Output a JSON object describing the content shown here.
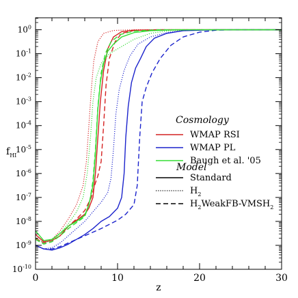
{
  "chart_data": {
    "type": "line",
    "xlabel": "z",
    "ylabel_main": "f",
    "ylabel_sub": "HI",
    "xlim": [
      0,
      30
    ],
    "ylim_log10": [
      -10,
      0.5
    ],
    "log_y": true,
    "x_ticks": [
      {
        "value": 0,
        "label": "0"
      },
      {
        "value": 10,
        "label": "10"
      },
      {
        "value": 20,
        "label": "20"
      },
      {
        "value": 30,
        "label": "30"
      }
    ],
    "y_ticks": [
      {
        "exp": 0,
        "base": "10",
        "sup": "0"
      },
      {
        "exp": -1,
        "base": "10",
        "sup": "-1"
      },
      {
        "exp": -2,
        "base": "10",
        "sup": "-2"
      },
      {
        "exp": -3,
        "base": "10",
        "sup": "-3"
      },
      {
        "exp": -4,
        "base": "10",
        "sup": "-4"
      },
      {
        "exp": -5,
        "base": "10",
        "sup": "-5"
      },
      {
        "exp": -6,
        "base": "10",
        "sup": "-6"
      },
      {
        "exp": -7,
        "base": "10",
        "sup": "-7"
      },
      {
        "exp": -8,
        "base": "10",
        "sup": "-8"
      },
      {
        "exp": -9,
        "base": "10",
        "sup": "-9"
      },
      {
        "exp": -10,
        "base": "10",
        "sup": "-10"
      }
    ],
    "legend_cosmology": {
      "title": "Cosmology",
      "items": [
        {
          "label": "WMAP RSI",
          "color": "#d42020"
        },
        {
          "label": "WMAP PL",
          "color": "#1a22cc"
        },
        {
          "label": "Baugh et al. '05",
          "color": "#33dd33"
        }
      ]
    },
    "legend_model": {
      "title": "Model",
      "items": [
        {
          "label": "Standard",
          "style": "solid"
        },
        {
          "label": "H",
          "sub": "2",
          "style": "dotted"
        },
        {
          "label": "H",
          "sub": "2",
          "label2": "WeakFB-VMSH",
          "sub2": "2",
          "style": "dashed"
        }
      ]
    },
    "series": [
      {
        "cosmology": "WMAP RSI",
        "model": "Standard",
        "color": "#d42020",
        "style": "solid",
        "points": [
          [
            0,
            -8.55
          ],
          [
            1,
            -8.85
          ],
          [
            2,
            -8.8
          ],
          [
            3,
            -8.6
          ],
          [
            4,
            -8.2
          ],
          [
            5,
            -7.95
          ],
          [
            6,
            -7.7
          ],
          [
            6.5,
            -7.45
          ],
          [
            7,
            -7.0
          ],
          [
            7.3,
            -6.0
          ],
          [
            7.6,
            -4.5
          ],
          [
            7.9,
            -3.0
          ],
          [
            8.3,
            -1.7
          ],
          [
            8.8,
            -0.8
          ],
          [
            9.5,
            -0.3
          ],
          [
            10.5,
            -0.08
          ],
          [
            12,
            -0.02
          ],
          [
            15,
            0
          ],
          [
            30,
            0
          ]
        ]
      },
      {
        "cosmology": "WMAP RSI",
        "model": "H2",
        "color": "#d42020",
        "style": "dotted",
        "points": [
          [
            0,
            -8.7
          ],
          [
            1,
            -8.9
          ],
          [
            2,
            -8.75
          ],
          [
            3,
            -8.4
          ],
          [
            4,
            -7.9
          ],
          [
            5,
            -7.3
          ],
          [
            5.8,
            -6.5
          ],
          [
            6.2,
            -5.5
          ],
          [
            6.5,
            -4.0
          ],
          [
            6.8,
            -2.5
          ],
          [
            7.1,
            -1.3
          ],
          [
            7.6,
            -0.5
          ],
          [
            8.3,
            -0.15
          ],
          [
            9.5,
            -0.03
          ],
          [
            12,
            0
          ],
          [
            30,
            0
          ]
        ]
      },
      {
        "cosmology": "WMAP RSI",
        "model": "H2WeakFB-VMSH2",
        "color": "#d42020",
        "style": "dashed",
        "points": [
          [
            0,
            -8.7
          ],
          [
            1,
            -8.9
          ],
          [
            2,
            -8.8
          ],
          [
            3,
            -8.6
          ],
          [
            4,
            -8.2
          ],
          [
            5,
            -7.9
          ],
          [
            6,
            -7.55
          ],
          [
            6.8,
            -7.0
          ],
          [
            7.2,
            -6.5
          ],
          [
            7.6,
            -6.1
          ],
          [
            8.0,
            -5.5
          ],
          [
            8.3,
            -4.0
          ],
          [
            8.6,
            -2.3
          ],
          [
            9.0,
            -1.2
          ],
          [
            9.7,
            -0.5
          ],
          [
            10.5,
            -0.15
          ],
          [
            12,
            -0.03
          ],
          [
            15,
            0
          ],
          [
            30,
            0
          ]
        ]
      },
      {
        "cosmology": "WMAP PL",
        "model": "Standard",
        "color": "#1a22cc",
        "style": "solid",
        "points": [
          [
            0,
            -9.0
          ],
          [
            1,
            -9.15
          ],
          [
            2,
            -9.2
          ],
          [
            3,
            -9.1
          ],
          [
            4,
            -8.95
          ],
          [
            5,
            -8.75
          ],
          [
            6,
            -8.55
          ],
          [
            7,
            -8.3
          ],
          [
            8,
            -8.0
          ],
          [
            9,
            -7.8
          ],
          [
            10,
            -7.45
          ],
          [
            10.5,
            -7.0
          ],
          [
            10.8,
            -6.0
          ],
          [
            11.0,
            -4.5
          ],
          [
            11.3,
            -3.2
          ],
          [
            11.7,
            -2.2
          ],
          [
            12.2,
            -1.6
          ],
          [
            12.8,
            -1.2
          ],
          [
            13.5,
            -0.7
          ],
          [
            14.5,
            -0.35
          ],
          [
            16,
            -0.15
          ],
          [
            18,
            -0.04
          ],
          [
            22,
            0
          ],
          [
            30,
            0
          ]
        ]
      },
      {
        "cosmology": "WMAP PL",
        "model": "H2",
        "color": "#1a22cc",
        "style": "dotted",
        "points": [
          [
            0,
            -9.0
          ],
          [
            1,
            -9.15
          ],
          [
            2,
            -9.1
          ],
          [
            3,
            -8.9
          ],
          [
            4,
            -8.6
          ],
          [
            5,
            -8.3
          ],
          [
            6,
            -8.0
          ],
          [
            7,
            -7.6
          ],
          [
            8,
            -7.2
          ],
          [
            8.8,
            -6.8
          ],
          [
            9.2,
            -6.2
          ],
          [
            9.5,
            -5.0
          ],
          [
            9.8,
            -3.5
          ],
          [
            10.2,
            -2.5
          ],
          [
            10.8,
            -1.7
          ],
          [
            11.5,
            -1.1
          ],
          [
            12.5,
            -0.6
          ],
          [
            14,
            -0.3
          ],
          [
            16,
            -0.12
          ],
          [
            18,
            -0.03
          ],
          [
            21,
            0
          ],
          [
            30,
            0
          ]
        ]
      },
      {
        "cosmology": "WMAP PL",
        "model": "H2WeakFB-VMSH2",
        "color": "#1a22cc",
        "style": "dashed",
        "points": [
          [
            0,
            -9.0
          ],
          [
            1,
            -9.15
          ],
          [
            2,
            -9.15
          ],
          [
            3,
            -9.05
          ],
          [
            4,
            -8.9
          ],
          [
            5,
            -8.75
          ],
          [
            6,
            -8.6
          ],
          [
            8,
            -8.3
          ],
          [
            10,
            -7.95
          ],
          [
            11,
            -7.7
          ],
          [
            12,
            -7.3
          ],
          [
            12.4,
            -6.5
          ],
          [
            12.7,
            -4.5
          ],
          [
            13.0,
            -3.0
          ],
          [
            13.5,
            -2.4
          ],
          [
            14.2,
            -1.8
          ],
          [
            15.2,
            -1.2
          ],
          [
            16.5,
            -0.65
          ],
          [
            18,
            -0.3
          ],
          [
            20,
            -0.1
          ],
          [
            22,
            -0.02
          ],
          [
            24,
            0
          ],
          [
            30,
            0
          ]
        ]
      },
      {
        "cosmology": "Baugh et al. '05",
        "model": "Standard",
        "color": "#33dd33",
        "style": "solid",
        "points": [
          [
            0,
            -8.4
          ],
          [
            1,
            -8.8
          ],
          [
            2,
            -8.75
          ],
          [
            3,
            -8.5
          ],
          [
            4,
            -8.2
          ],
          [
            5,
            -8.0
          ],
          [
            6,
            -7.75
          ],
          [
            6.5,
            -7.3
          ],
          [
            7,
            -6.5
          ],
          [
            7.3,
            -5.2
          ],
          [
            7.6,
            -3.3
          ],
          [
            7.9,
            -2.2
          ],
          [
            8.3,
            -1.4
          ],
          [
            8.8,
            -0.9
          ],
          [
            9.5,
            -0.6
          ],
          [
            10.5,
            -0.3
          ],
          [
            12,
            -0.12
          ],
          [
            14,
            -0.04
          ],
          [
            17,
            0
          ],
          [
            30,
            0
          ]
        ]
      },
      {
        "cosmology": "Baugh et al. '05",
        "model": "H2",
        "color": "#33dd33",
        "style": "dotted",
        "points": [
          [
            0,
            -8.7
          ],
          [
            1,
            -8.9
          ],
          [
            2,
            -8.8
          ],
          [
            3,
            -8.5
          ],
          [
            4,
            -8.1
          ],
          [
            5,
            -7.6
          ],
          [
            5.8,
            -7.0
          ],
          [
            6.3,
            -6.0
          ],
          [
            6.7,
            -4.5
          ],
          [
            7.0,
            -3.0
          ],
          [
            7.4,
            -2.0
          ],
          [
            8.0,
            -1.4
          ],
          [
            9.0,
            -1.0
          ],
          [
            10.5,
            -0.7
          ],
          [
            12,
            -0.4
          ],
          [
            14,
            -0.15
          ],
          [
            16,
            -0.05
          ],
          [
            19,
            0
          ],
          [
            30,
            0
          ]
        ]
      },
      {
        "cosmology": "Baugh et al. '05",
        "model": "H2WeakFB-VMSH2",
        "color": "#33dd33",
        "style": "dashed",
        "points": [
          [
            0,
            -8.75
          ],
          [
            1,
            -8.95
          ],
          [
            2,
            -8.85
          ],
          [
            3,
            -8.6
          ],
          [
            4,
            -8.3
          ],
          [
            5,
            -8.05
          ],
          [
            6,
            -7.8
          ],
          [
            6.6,
            -7.2
          ],
          [
            7.0,
            -6.3
          ],
          [
            7.3,
            -5.0
          ],
          [
            7.6,
            -3.2
          ],
          [
            8.0,
            -1.8
          ],
          [
            8.5,
            -1.0
          ],
          [
            9.2,
            -0.5
          ],
          [
            10.3,
            -0.2
          ],
          [
            12,
            -0.06
          ],
          [
            15,
            0
          ],
          [
            30,
            0
          ]
        ]
      }
    ]
  }
}
